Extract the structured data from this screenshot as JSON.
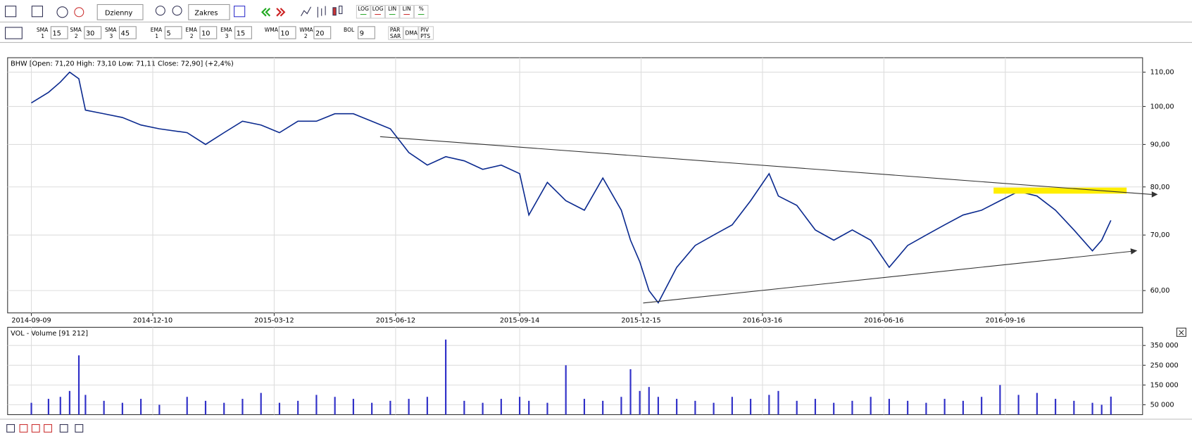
{
  "toolbar": {
    "interval": "Dzienny",
    "range": "Zakres",
    "scale_buttons": [
      "LOG",
      "LOG",
      "LIN",
      "LIN",
      "%"
    ]
  },
  "indicators": [
    {
      "name": "SMA",
      "sub": "1",
      "value": "15"
    },
    {
      "name": "SMA",
      "sub": "2",
      "value": "30"
    },
    {
      "name": "SMA",
      "sub": "3",
      "value": "45"
    },
    {
      "name": "EMA",
      "sub": "1",
      "value": "5"
    },
    {
      "name": "EMA",
      "sub": "2",
      "value": "10"
    },
    {
      "name": "EMA",
      "sub": "3",
      "value": "15"
    },
    {
      "name": "WMA",
      "value": "10"
    },
    {
      "name": "WMA",
      "sub": "2",
      "value": "20"
    },
    {
      "name": "BOL",
      "value": "9"
    }
  ],
  "indicator_buttons": [
    [
      "PAR",
      "SAR"
    ],
    [
      "DMA"
    ],
    [
      "PIV",
      "PTS"
    ]
  ],
  "chart_data": [
    {
      "type": "line",
      "title": "BHW [Open: 71,20  High: 73,10  Low: 71,11  Close: 72,90] (+2,4%)",
      "color": "#0b2a8f",
      "log_scale": true,
      "grid": true,
      "x": [
        "2014-09-09",
        "2014-09-22",
        "2014-10-01",
        "2014-10-08",
        "2014-10-15",
        "2014-10-20",
        "2014-11-03",
        "2014-11-17",
        "2014-12-01",
        "2014-12-15",
        "2015-01-05",
        "2015-01-19",
        "2015-02-02",
        "2015-02-16",
        "2015-03-02",
        "2015-03-16",
        "2015-03-30",
        "2015-04-13",
        "2015-04-27",
        "2015-05-11",
        "2015-05-25",
        "2015-06-08",
        "2015-06-22",
        "2015-07-06",
        "2015-07-20",
        "2015-08-03",
        "2015-08-17",
        "2015-08-31",
        "2015-09-14",
        "2015-09-21",
        "2015-10-05",
        "2015-10-19",
        "2015-11-02",
        "2015-11-16",
        "2015-11-30",
        "2015-12-07",
        "2015-12-14",
        "2015-12-21",
        "2015-12-28",
        "2016-01-11",
        "2016-01-25",
        "2016-02-08",
        "2016-02-22",
        "2016-03-07",
        "2016-03-21",
        "2016-03-28",
        "2016-04-11",
        "2016-04-25",
        "2016-05-09",
        "2016-05-23",
        "2016-06-06",
        "2016-06-20",
        "2016-07-04",
        "2016-07-18",
        "2016-08-01",
        "2016-08-15",
        "2016-08-29",
        "2016-09-12",
        "2016-09-26",
        "2016-10-10",
        "2016-10-24",
        "2016-11-07",
        "2016-11-21",
        "2016-11-28",
        "2016-12-05"
      ],
      "values": [
        101,
        104,
        107,
        110,
        108,
        99,
        98,
        97,
        95,
        94,
        93,
        90,
        93,
        96,
        95,
        93,
        96,
        96,
        98,
        98,
        96,
        94,
        88,
        85,
        87,
        86,
        84,
        85,
        83,
        74,
        81,
        77,
        75,
        82,
        75,
        69,
        65,
        60,
        58,
        64,
        68,
        70,
        72,
        77,
        83,
        78,
        76,
        71,
        69,
        71,
        69,
        64,
        68,
        70,
        72,
        74,
        75,
        77,
        79,
        78,
        75,
        71,
        67,
        69,
        72.9
      ],
      "xlim": [
        "2014-08-22",
        "2016-12-29"
      ],
      "xticks": [
        "2014-09-09",
        "2014-12-10",
        "2015-03-12",
        "2015-06-12",
        "2015-09-14",
        "2015-12-15",
        "2016-03-16",
        "2016-06-16",
        "2016-09-16"
      ],
      "ylim": [
        56.4,
        114.5
      ],
      "yticks": [
        {
          "value": 110,
          "label": "110,00"
        },
        {
          "value": 100,
          "label": "100,00"
        },
        {
          "value": 90,
          "label": "90,00"
        },
        {
          "value": 80,
          "label": "80,00"
        },
        {
          "value": 70,
          "label": "70,00"
        },
        {
          "value": 60,
          "label": "60,00"
        }
      ]
    },
    {
      "type": "bar",
      "title": "VOL - Volume [91 212]",
      "color": "#3030c8",
      "grid": true,
      "x": [
        "2014-09-09",
        "2014-09-22",
        "2014-10-01",
        "2014-10-08",
        "2014-10-15",
        "2014-10-20",
        "2014-11-03",
        "2014-11-17",
        "2014-12-01",
        "2014-12-15",
        "2015-01-05",
        "2015-01-19",
        "2015-02-02",
        "2015-02-16",
        "2015-03-02",
        "2015-03-16",
        "2015-03-30",
        "2015-04-13",
        "2015-04-27",
        "2015-05-11",
        "2015-05-25",
        "2015-06-08",
        "2015-06-22",
        "2015-07-06",
        "2015-07-20",
        "2015-08-03",
        "2015-08-17",
        "2015-08-31",
        "2015-09-14",
        "2015-09-21",
        "2015-10-05",
        "2015-10-19",
        "2015-11-02",
        "2015-11-16",
        "2015-11-30",
        "2015-12-07",
        "2015-12-14",
        "2015-12-21",
        "2015-12-28",
        "2016-01-11",
        "2016-01-25",
        "2016-02-08",
        "2016-02-22",
        "2016-03-07",
        "2016-03-21",
        "2016-03-28",
        "2016-04-11",
        "2016-04-25",
        "2016-05-09",
        "2016-05-23",
        "2016-06-06",
        "2016-06-20",
        "2016-07-04",
        "2016-07-18",
        "2016-08-01",
        "2016-08-15",
        "2016-08-29",
        "2016-09-12",
        "2016-09-26",
        "2016-10-10",
        "2016-10-24",
        "2016-11-07",
        "2016-11-21",
        "2016-11-28",
        "2016-12-05"
      ],
      "values": [
        60000,
        80000,
        90000,
        120000,
        300000,
        100000,
        70000,
        60000,
        80000,
        50000,
        90000,
        70000,
        60000,
        80000,
        110000,
        60000,
        70000,
        100000,
        90000,
        80000,
        60000,
        70000,
        80000,
        90000,
        380000,
        70000,
        60000,
        80000,
        90000,
        70000,
        60000,
        250000,
        80000,
        70000,
        90000,
        230000,
        120000,
        140000,
        90000,
        80000,
        70000,
        60000,
        90000,
        80000,
        100000,
        120000,
        70000,
        80000,
        60000,
        70000,
        90000,
        80000,
        70000,
        60000,
        80000,
        70000,
        90000,
        150000,
        100000,
        110000,
        80000,
        70000,
        60000,
        50000,
        91212
      ],
      "xlim": [
        "2014-08-22",
        "2016-12-29"
      ],
      "ylim": [
        0,
        442000
      ],
      "yticks": [
        {
          "value": 350000,
          "label": "350 000"
        },
        {
          "value": 250000,
          "label": "250 000"
        },
        {
          "value": 150000,
          "label": "150 000"
        },
        {
          "value": 50000,
          "label": "50 000"
        }
      ]
    }
  ]
}
